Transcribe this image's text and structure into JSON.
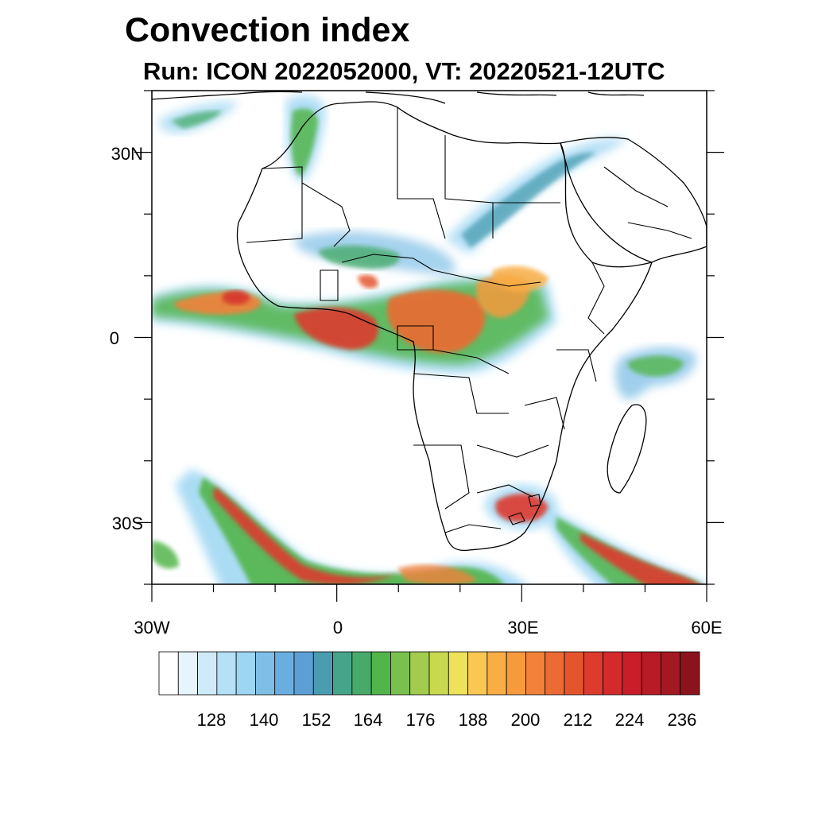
{
  "title": "Convection index",
  "subtitle": "Run: ICON 2022052000,  VT: 20220521-12UTC",
  "map": {
    "lat_labels": [
      "30N",
      "0",
      "30S"
    ],
    "lon_labels": [
      "30W",
      "0",
      "30E",
      "60E"
    ],
    "lon_range": [
      -30,
      60
    ],
    "lat_range": [
      -40,
      40
    ],
    "landmasses": [
      "Africa",
      "Arabian Peninsula",
      "Madagascar",
      "Southern Europe"
    ]
  },
  "colorbar": {
    "tick_labels": [
      "128",
      "140",
      "152",
      "164",
      "176",
      "188",
      "200",
      "212",
      "224",
      "236"
    ],
    "colors": [
      "#ffffff",
      "#e6f4fc",
      "#cfeaf9",
      "#b5e0f6",
      "#9cd6f3",
      "#7fbfe6",
      "#6aaedf",
      "#5b9fd4",
      "#4a9db1",
      "#46a48a",
      "#47aa6a",
      "#52b54b",
      "#7ac04d",
      "#a3cc4f",
      "#c9d94f",
      "#eee25a",
      "#f8c853",
      "#f9ad45",
      "#f79a3c",
      "#f3813a",
      "#ec6a33",
      "#e5552d",
      "#dd3b2d",
      "#d42a2b",
      "#c91d2a",
      "#b81a26",
      "#a31822",
      "#8b141c"
    ]
  }
}
